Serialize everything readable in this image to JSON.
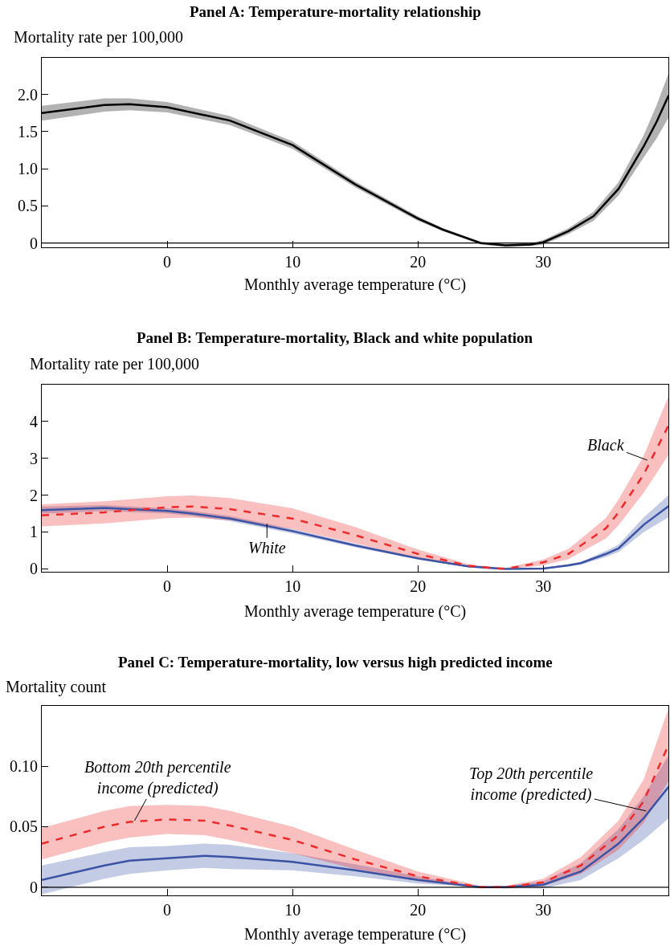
{
  "chart_data": [
    {
      "type": "line",
      "title": "Panel A: Temperature-mortality relationship",
      "ylabel": "Mortality rate per 100,000",
      "xlabel": "Monthly average temperature (°C)",
      "x": [
        -10,
        -5,
        -3,
        0,
        5,
        10,
        15,
        20,
        22,
        25,
        27,
        29,
        30,
        32,
        34,
        36,
        38,
        39,
        40
      ],
      "series": [
        {
          "color": "#000000",
          "line_style": "solid",
          "values": [
            1.75,
            1.86,
            1.87,
            1.83,
            1.65,
            1.32,
            0.79,
            0.33,
            0.18,
            0.0,
            -0.03,
            -0.02,
            0.01,
            0.16,
            0.36,
            0.73,
            1.3,
            1.62,
            1.99
          ],
          "lower": [
            1.65,
            1.77,
            1.79,
            1.76,
            1.59,
            1.27,
            0.75,
            0.3,
            0.16,
            -0.02,
            -0.055,
            -0.04,
            -0.02,
            0.12,
            0.3,
            0.64,
            1.15,
            1.4,
            1.69
          ],
          "upper": [
            1.85,
            1.95,
            1.95,
            1.9,
            1.71,
            1.37,
            0.83,
            0.36,
            0.2,
            0.02,
            -0.015,
            0.0,
            0.04,
            0.2,
            0.42,
            0.82,
            1.45,
            1.84,
            2.29
          ]
        }
      ],
      "xlim": [
        -10,
        40
      ],
      "ylim": [
        -0.06,
        2.5
      ],
      "xticks": [
        0,
        10,
        20,
        30
      ],
      "yticks": [
        {
          "value": 0,
          "label": "0"
        },
        {
          "value": 0.5,
          "label": "0.5"
        },
        {
          "value": 1,
          "label": "1.0"
        },
        {
          "value": 1.5,
          "label": "1.5"
        },
        {
          "value": 2,
          "label": "2.0"
        }
      ],
      "ref_lines": [
        {
          "axis": "y",
          "value": 0,
          "color": "#000000"
        }
      ]
    },
    {
      "type": "line",
      "title": "Panel B: Temperature-mortality, Black and white population",
      "ylabel": "Mortality rate per 100,000",
      "xlabel": "Monthly average temperature (°C)",
      "x": [
        -10,
        -5,
        0,
        2,
        5,
        10,
        15,
        20,
        24,
        26.5,
        27,
        30,
        32,
        33,
        35,
        36,
        38,
        40
      ],
      "series": [
        {
          "color": "#3a53a4",
          "line_style": "solid",
          "values": [
            1.59,
            1.65,
            1.57,
            1.5,
            1.36,
            1.02,
            0.63,
            0.28,
            0.06,
            0.0,
            -0.01,
            0.0,
            0.09,
            0.15,
            0.4,
            0.55,
            1.19,
            1.7
          ],
          "lower": [
            1.49,
            1.57,
            1.5,
            1.43,
            1.29,
            0.96,
            0.58,
            0.25,
            0.04,
            -0.01,
            -0.02,
            -0.02,
            0.06,
            0.11,
            0.32,
            0.45,
            0.99,
            1.4
          ],
          "upper": [
            1.69,
            1.73,
            1.64,
            1.57,
            1.43,
            1.08,
            0.68,
            0.31,
            0.08,
            0.01,
            0.0,
            0.02,
            0.12,
            0.19,
            0.48,
            0.65,
            1.39,
            2.0
          ]
        },
        {
          "color": "#ee2a2a",
          "line_style": "dashed",
          "values": [
            1.45,
            1.53,
            1.67,
            1.69,
            1.62,
            1.36,
            0.91,
            0.4,
            0.08,
            0.0,
            0.0,
            0.17,
            0.4,
            0.63,
            1.1,
            1.53,
            2.56,
            3.9
          ],
          "lower": [
            1.15,
            1.23,
            1.37,
            1.39,
            1.32,
            1.08,
            0.69,
            0.28,
            0.04,
            -0.02,
            -0.02,
            0.09,
            0.26,
            0.45,
            0.82,
            1.18,
            2.06,
            3.1
          ],
          "upper": [
            1.75,
            1.83,
            1.97,
            1.99,
            1.92,
            1.64,
            1.13,
            0.52,
            0.12,
            0.02,
            0.02,
            0.25,
            0.54,
            0.81,
            1.38,
            1.88,
            3.06,
            4.7
          ]
        }
      ],
      "annotations": [
        {
          "text": "White",
          "x": 7.96,
          "y": 1.22
        },
        {
          "text": "Black",
          "x": 38.3,
          "y": 2.95
        }
      ],
      "xlim": [
        -10,
        40
      ],
      "ylim": [
        -0.08,
        5.0
      ],
      "xticks": [
        0,
        10,
        20,
        30
      ],
      "yticks": [
        0,
        1,
        2,
        3,
        4
      ]
    },
    {
      "type": "line",
      "title": "Panel C: Temperature-mortality, low versus high predicted income",
      "ylabel": "Mortality count",
      "xlabel": "Monthly average temperature (°C)",
      "x": [
        -10,
        -5,
        -3,
        0,
        3,
        5,
        10,
        15,
        20,
        25,
        27,
        30,
        33,
        36,
        38,
        40
      ],
      "series": [
        {
          "color": "#3a53a4",
          "line_style": "solid",
          "values": [
            0.006,
            0.018,
            0.022,
            0.024,
            0.026,
            0.025,
            0.021,
            0.014,
            0.006,
            0.0,
            0.0,
            0.002,
            0.013,
            0.036,
            0.057,
            0.083
          ],
          "lower": [
            -0.006,
            0.007,
            0.011,
            0.014,
            0.016,
            0.015,
            0.014,
            0.009,
            0.003,
            0.0,
            -0.001,
            -0.001,
            0.006,
            0.024,
            0.039,
            0.057
          ],
          "upper": [
            0.018,
            0.029,
            0.033,
            0.034,
            0.036,
            0.035,
            0.028,
            0.019,
            0.009,
            0.0,
            0.001,
            0.005,
            0.02,
            0.048,
            0.075,
            0.109
          ]
        },
        {
          "color": "#ee2a2a",
          "line_style": "dashed",
          "values": [
            0.036,
            0.05,
            0.054,
            0.056,
            0.055,
            0.051,
            0.039,
            0.023,
            0.009,
            0.0,
            0.0,
            0.004,
            0.018,
            0.043,
            0.071,
            0.118
          ],
          "lower": [
            0.023,
            0.037,
            0.041,
            0.044,
            0.043,
            0.039,
            0.028,
            0.015,
            0.005,
            -0.001,
            -0.001,
            0.001,
            0.011,
            0.031,
            0.053,
            0.088
          ],
          "upper": [
            0.049,
            0.063,
            0.067,
            0.068,
            0.067,
            0.063,
            0.05,
            0.031,
            0.013,
            0.001,
            0.001,
            0.007,
            0.025,
            0.055,
            0.089,
            0.148
          ]
        }
      ],
      "annotations": [
        {
          "text": "Bottom 20th percentile\nincome (predicted)",
          "x": -2.6,
          "y": 0.055
        },
        {
          "text": "Top 20th percentile\nincome (predicted)",
          "x": 38.2,
          "y": 0.063
        }
      ],
      "xlim": [
        -10,
        40
      ],
      "ylim": [
        -0.007,
        0.15
      ],
      "xticks": [
        0,
        10,
        20,
        30
      ],
      "yticks": [
        {
          "value": 0,
          "label": "0"
        },
        {
          "value": 0.05,
          "label": "0.05"
        },
        {
          "value": 0.1,
          "label": "0.10"
        }
      ],
      "ref_lines": [
        {
          "axis": "y",
          "value": 0,
          "color": "#000000"
        }
      ]
    }
  ]
}
